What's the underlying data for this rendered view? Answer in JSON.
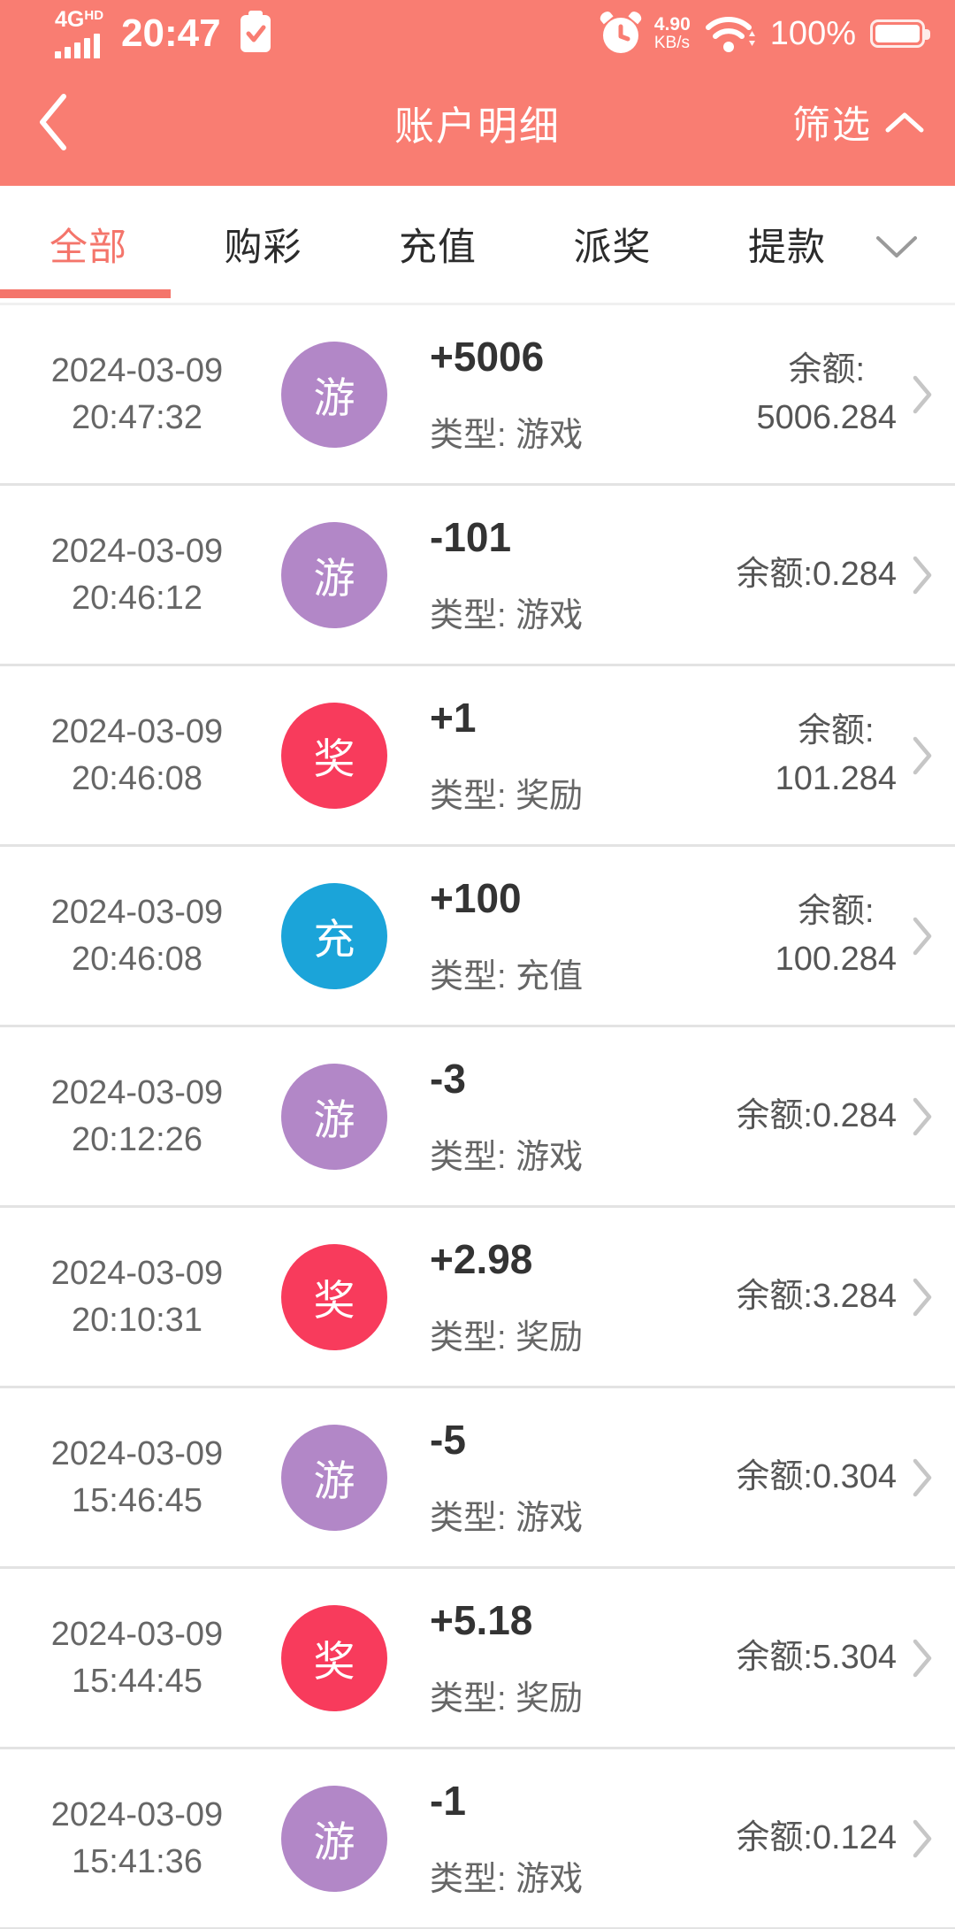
{
  "colors": {
    "header_bg": "#f97d72",
    "accent": "#f4756b",
    "tab_inactive": "#2b2b2b",
    "divider": "#e3e3e3",
    "badge_game": "#b287c7",
    "badge_reward": "#f83b5c",
    "badge_deposit": "#1ba4d9"
  },
  "status_bar": {
    "network": "4G",
    "network_hd": "HD",
    "time": "20:47",
    "net_speed_value": "4.90",
    "net_speed_unit": "KB/s",
    "battery_percent": "100%",
    "icons": [
      "signal-bars-icon",
      "clipboard-check-icon",
      "alarm-clock-icon",
      "wifi-icon",
      "battery-icon"
    ]
  },
  "nav": {
    "title": "账户明细",
    "filter_label": "筛选"
  },
  "tabs": {
    "items": [
      {
        "label": "全部",
        "active": true
      },
      {
        "label": "购彩",
        "active": false
      },
      {
        "label": "充值",
        "active": false
      },
      {
        "label": "派奖",
        "active": false
      },
      {
        "label": "提款",
        "active": false
      }
    ]
  },
  "transactions": [
    {
      "date": "2024-03-09",
      "time": "20:47:32",
      "badge": "游",
      "badge_color": "#b287c7",
      "amount": "+5006",
      "type_label": "类型: 游戏",
      "balance_lines": [
        "余额:",
        "5006.284"
      ]
    },
    {
      "date": "2024-03-09",
      "time": "20:46:12",
      "badge": "游",
      "badge_color": "#b287c7",
      "amount": "-101",
      "type_label": "类型: 游戏",
      "balance_lines": [
        "余额:0.284"
      ]
    },
    {
      "date": "2024-03-09",
      "time": "20:46:08",
      "badge": "奖",
      "badge_color": "#f83b5c",
      "amount": "+1",
      "type_label": "类型: 奖励",
      "balance_lines": [
        "余额:",
        "101.284"
      ]
    },
    {
      "date": "2024-03-09",
      "time": "20:46:08",
      "badge": "充",
      "badge_color": "#1ba4d9",
      "amount": "+100",
      "type_label": "类型: 充值",
      "balance_lines": [
        "余额:",
        "100.284"
      ]
    },
    {
      "date": "2024-03-09",
      "time": "20:12:26",
      "badge": "游",
      "badge_color": "#b287c7",
      "amount": "-3",
      "type_label": "类型: 游戏",
      "balance_lines": [
        "余额:0.284"
      ]
    },
    {
      "date": "2024-03-09",
      "time": "20:10:31",
      "badge": "奖",
      "badge_color": "#f83b5c",
      "amount": "+2.98",
      "type_label": "类型: 奖励",
      "balance_lines": [
        "余额:3.284"
      ]
    },
    {
      "date": "2024-03-09",
      "time": "15:46:45",
      "badge": "游",
      "badge_color": "#b287c7",
      "amount": "-5",
      "type_label": "类型: 游戏",
      "balance_lines": [
        "余额:0.304"
      ]
    },
    {
      "date": "2024-03-09",
      "time": "15:44:45",
      "badge": "奖",
      "badge_color": "#f83b5c",
      "amount": "+5.18",
      "type_label": "类型: 奖励",
      "balance_lines": [
        "余额:5.304"
      ]
    },
    {
      "date": "2024-03-09",
      "time": "15:41:36",
      "badge": "游",
      "badge_color": "#b287c7",
      "amount": "-1",
      "type_label": "类型: 游戏",
      "balance_lines": [
        "余额:0.124"
      ]
    }
  ]
}
